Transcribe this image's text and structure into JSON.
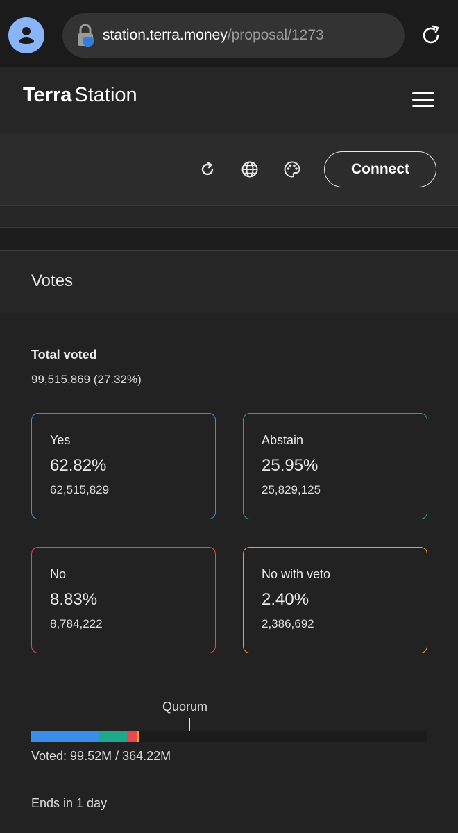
{
  "browser": {
    "url_host": "station.terra.money",
    "url_path": "/proposal/1273"
  },
  "header": {
    "brand_bold": "Terra",
    "brand_light": "Station"
  },
  "toolbar": {
    "icons": [
      "refresh-icon",
      "globe-icon",
      "palette-icon"
    ],
    "connect_label": "Connect"
  },
  "votes": {
    "title": "Votes",
    "total_label": "Total voted",
    "total_value": "99,515,869 (27.32%)",
    "options": [
      {
        "label": "Yes",
        "percent": "62.82%",
        "count": "62,515,829",
        "color": "#3b8ee8"
      },
      {
        "label": "Abstain",
        "percent": "25.95%",
        "count": "25,829,125",
        "color": "#1fa88c"
      },
      {
        "label": "No",
        "percent": "8.83%",
        "count": "8,784,222",
        "color": "#e5484d"
      },
      {
        "label": "No with veto",
        "percent": "2.40%",
        "count": "2,386,692",
        "color": "#f39c1e"
      }
    ],
    "quorum_label": "Quorum",
    "quorum_fraction": 0.4,
    "bar_segments": [
      {
        "name": "yes",
        "fraction": 0.1716,
        "color": "#3b8ee8"
      },
      {
        "name": "abstain",
        "fraction": 0.0709,
        "color": "#1fa88c"
      },
      {
        "name": "no",
        "fraction": 0.0241,
        "color": "#e5484d"
      },
      {
        "name": "no-with-veto",
        "fraction": 0.0066,
        "color": "#f39c1e"
      }
    ],
    "voted_text": "Voted: 99.52M / 364.22M",
    "ends_text": "Ends in 1 day"
  }
}
